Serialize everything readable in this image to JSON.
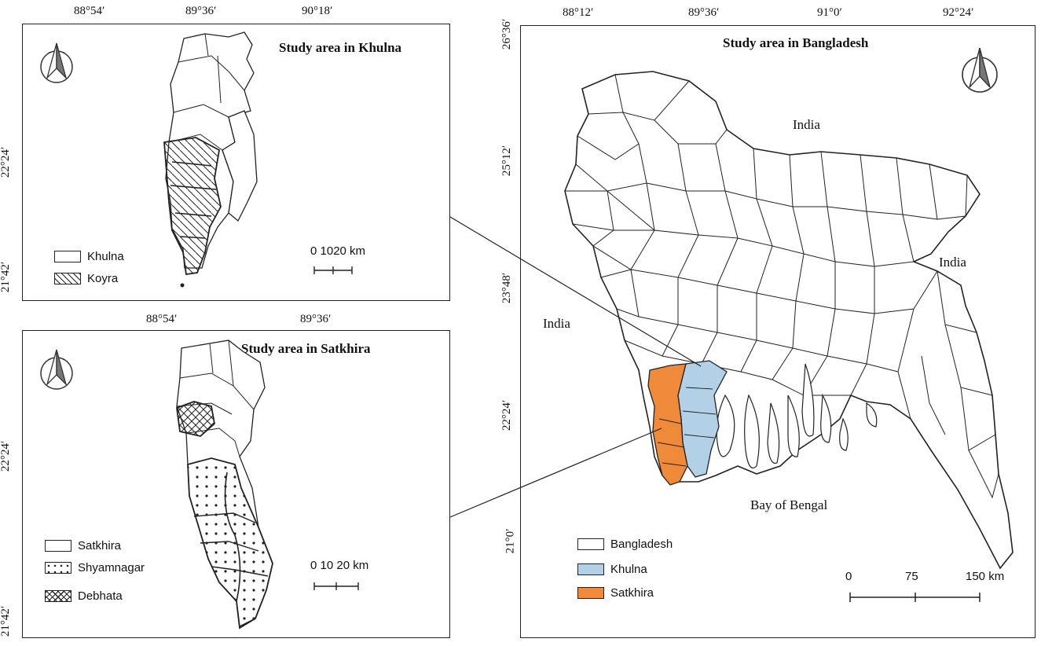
{
  "khulna_panel": {
    "title": "Study area in Khulna",
    "lon_ticks": [
      "88°54′",
      "89°36′",
      "90°18′"
    ],
    "lat_ticks": [
      "22°24′",
      "21°42′"
    ],
    "legend": [
      {
        "label": "Khulna",
        "pattern": "blank"
      },
      {
        "label": "Koyra",
        "pattern": "diagonal-hatch"
      }
    ],
    "scale": {
      "label": "0 1020 km"
    }
  },
  "satkhira_panel": {
    "title": "Study area in Satkhira",
    "lon_ticks": [
      "88°54′",
      "89°36′"
    ],
    "lat_ticks": [
      "22°24′",
      "21°42′"
    ],
    "legend": [
      {
        "label": "Satkhira",
        "pattern": "blank"
      },
      {
        "label": "Shyamnagar",
        "pattern": "dots"
      },
      {
        "label": "Debhata",
        "pattern": "cross-hatch"
      }
    ],
    "scale": {
      "label": "0  10 20 km"
    }
  },
  "bangladesh_panel": {
    "title": "Study area in Bangladesh",
    "lon_ticks": [
      "88°12′",
      "89°36′",
      "91°0′",
      "92°24′"
    ],
    "lat_ticks": [
      "26°36′",
      "25°12′",
      "23°48′",
      "22°24′",
      "21°0′"
    ],
    "places": {
      "india_north": "India",
      "india_east": "India",
      "india_west": "India",
      "bay": "Bay of Bengal"
    },
    "legend": [
      {
        "label": "Bangladesh",
        "color": "#ffffff"
      },
      {
        "label": "Khulna",
        "color": "#b3d1e6"
      },
      {
        "label": "Satkhira",
        "color": "#ef8a3a"
      }
    ],
    "scale": {
      "ticks": [
        "0",
        "75",
        "150 km"
      ]
    }
  },
  "colors": {
    "khulna": "#b3d1e6",
    "satkhira": "#ef8a3a",
    "border": "#222222"
  }
}
